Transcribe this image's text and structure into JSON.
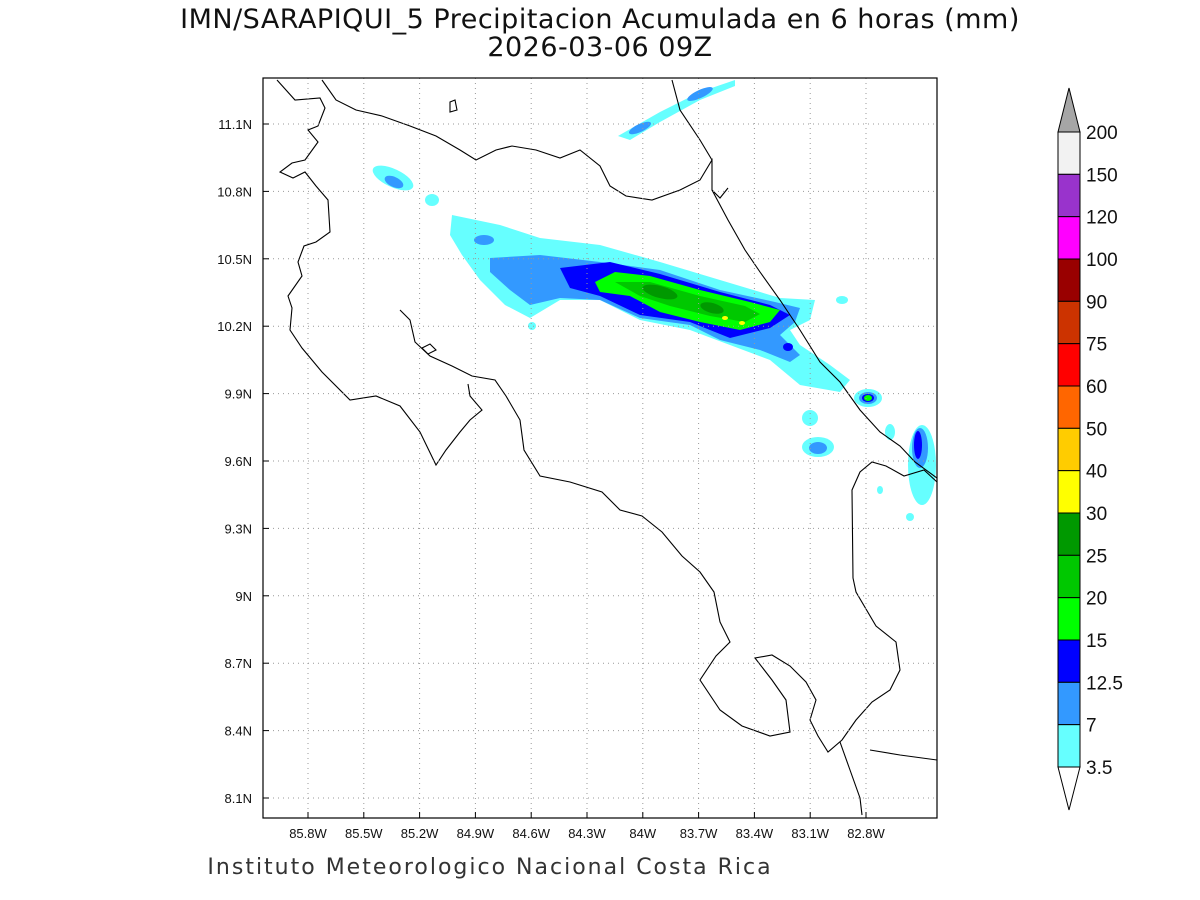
{
  "title": "IMN/SARAPIQUI_5 Precipitacion Acumulada en 6 horas (mm)",
  "subtitle": "2026-03-06 09Z",
  "footer": "Instituto Meteorologico Nacional Costa Rica",
  "map": {
    "lon_ticks": [
      "85.8W",
      "85.5W",
      "85.2W",
      "84.9W",
      "84.6W",
      "84.3W",
      "84W",
      "83.7W",
      "83.4W",
      "83.1W",
      "82.8W"
    ],
    "lat_ticks": [
      "11.1N",
      "10.8N",
      "10.5N",
      "10.2N",
      "9.9N",
      "9.6N",
      "9.3N",
      "9N",
      "8.7N",
      "8.4N",
      "8.1N"
    ]
  },
  "colorbar": {
    "labels": [
      "200",
      "150",
      "120",
      "100",
      "90",
      "75",
      "60",
      "50",
      "40",
      "30",
      "25",
      "20",
      "15",
      "12.5",
      "7",
      "3.5"
    ],
    "colors": [
      "#f2f2f2",
      "#9933cc",
      "#ff00ff",
      "#990000",
      "#cc3300",
      "#ff0000",
      "#ff6600",
      "#ffcc00",
      "#ffff00",
      "#009900",
      "#00c800",
      "#00ff00",
      "#0000ff",
      "#3399ff",
      "#66ffff"
    ],
    "over_color": "#a6a6a6",
    "under_color": "#ffffff"
  }
}
